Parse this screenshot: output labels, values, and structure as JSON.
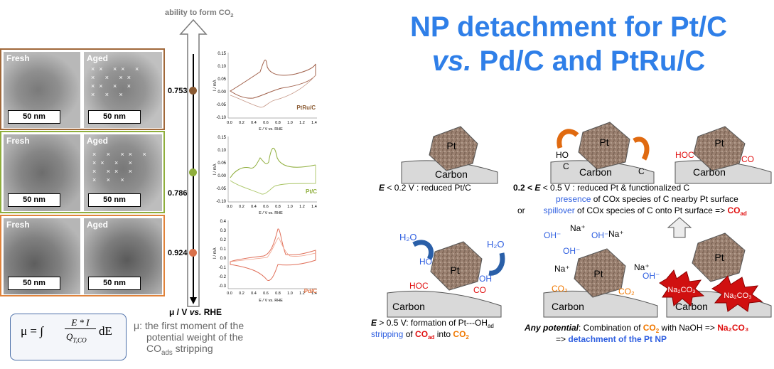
{
  "title": {
    "line1": "NP detachment for Pt/C",
    "line2_vs": "vs.",
    "line2_rest": " Pd/C and PtRu/C"
  },
  "arrow": {
    "label_pre": "ability to form CO",
    "label_sub": "2",
    "axis_label_pre": "μ / V ",
    "axis_label_vs": "vs.",
    "axis_label_post": " RHE"
  },
  "mu_values": [
    "0.753",
    "0.786",
    "0.924"
  ],
  "tem": {
    "fresh": "Fresh",
    "aged": "Aged",
    "scalebar": "50 nm"
  },
  "cv_plots": [
    {
      "label": "PtRu/C",
      "y_ticks": [
        "0.15",
        "0.10",
        "0.05",
        "0.00",
        "-0.05",
        "-0.10"
      ],
      "ylim": [
        -0.1,
        0.15
      ]
    },
    {
      "label": "Pt/C",
      "y_ticks": [
        "0.15",
        "0.10",
        "0.05",
        "0.00",
        "-0.05",
        "-0.10"
      ],
      "ylim": [
        -0.1,
        0.15
      ]
    },
    {
      "label": "Pd/C",
      "y_ticks": [
        "0.4",
        "0.3",
        "0.2",
        "0.1",
        "0.0",
        "-0.1",
        "-0.2",
        "-0.3"
      ],
      "ylim": [
        -0.3,
        0.4
      ]
    }
  ],
  "cv_x_ticks": [
    "0.0",
    "0.2",
    "0.4",
    "0.6",
    "0.8",
    "1.0",
    "1.2",
    "1.4"
  ],
  "cv_xlabel": "E / V vs. RHE",
  "cv_ylabel": "I / mA",
  "formula": {
    "lhs": "μ = ∫",
    "num": "E * I",
    "den": "Q",
    "den_sub": "T,CO",
    "rhs": "dE"
  },
  "formula_note": {
    "line1": "μ: the first moment of the",
    "line2": "potential weight of the",
    "line3_pre": "CO",
    "line3_sub": "ads",
    "line3_post": " stripping"
  },
  "diagram": {
    "pt": "Pt",
    "carbon": "Carbon",
    "hoc": "HOC",
    "co": "CO",
    "ho": "HO",
    "c": "C",
    "oh": "OH",
    "h2o": "H₂O",
    "co2": "CO₂",
    "na": "Na⁺",
    "ohm": "OH⁻",
    "na2co3": "Na₂CO₃",
    "cap1_e": "E",
    "cap1_rest": " < 0.2 V : reduced Pt/C",
    "cap2_pre": "0.2 < ",
    "cap2_e": "E",
    "cap2_rest": " < 0.5 V : reduced Pt & functionalized C",
    "cap2_presence": "presence",
    "cap2_presence_rest": " of COx species of C nearby Pt surface",
    "cap2_or": "or",
    "cap2_spill": "spillover",
    "cap2_spill_rest": " of COx species of C onto Pt surface => ",
    "cap2_coad": "CO",
    "cap2_coad_sub": "ad",
    "cap3_e": "E",
    "cap3_rest": " > 0.5 V: formation of Pt---OH",
    "cap3_sub": "ad",
    "cap3_strip": "stripping",
    "cap3_of": " of ",
    "cap3_co": "CO",
    "cap3_co_sub": "ad",
    "cap3_into": " into ",
    "cap3_co2": "CO",
    "cap3_co2_sub": "2",
    "cap4_any": "Any potential",
    "cap4_rest": ": Combination of ",
    "cap4_co2": "CO",
    "cap4_co2_sub": "2",
    "cap4_naoh": " with NaOH => ",
    "cap4_na2co3": "Na₂CO₃",
    "cap4_line2_pre": "=> ",
    "cap4_detach": "detachment of the Pt NP"
  }
}
